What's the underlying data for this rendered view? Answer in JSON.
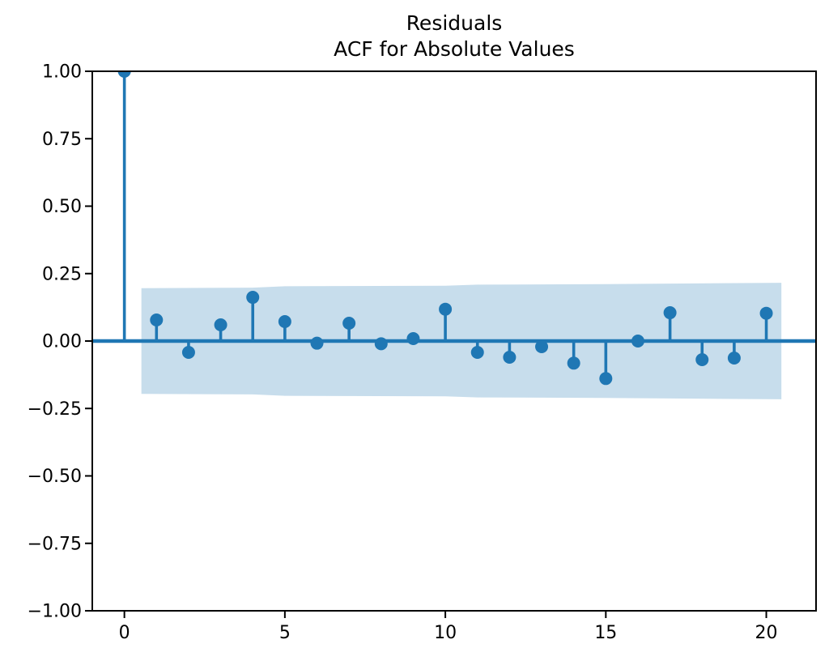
{
  "title": {
    "line1": "Residuals",
    "line2": "ACF for Absolute Values"
  },
  "chart_data": {
    "type": "stem",
    "title": "Residuals\nACF for Absolute Values",
    "xlabel": "",
    "ylabel": "",
    "x": [
      0,
      1,
      2,
      3,
      4,
      5,
      6,
      7,
      8,
      9,
      10,
      11,
      12,
      13,
      14,
      15,
      16,
      17,
      18,
      19,
      20
    ],
    "values": [
      1.0,
      0.078,
      -0.042,
      0.06,
      0.162,
      0.072,
      -0.008,
      0.066,
      -0.01,
      0.009,
      0.118,
      -0.042,
      -0.06,
      -0.021,
      -0.082,
      -0.139,
      0.0,
      0.105,
      -0.069,
      -0.063,
      0.103
    ],
    "xlim": [
      -1.0,
      21.55
    ],
    "ylim": [
      -1.0,
      1.0
    ],
    "xticks": {
      "values": [
        0,
        5,
        10,
        15,
        20
      ],
      "labels": [
        "0",
        "5",
        "10",
        "15",
        "20"
      ]
    },
    "yticks": {
      "values": [
        1.0,
        0.75,
        0.5,
        0.25,
        0.0,
        -0.25,
        -0.5,
        -0.75,
        -1.0
      ],
      "labels": [
        "1.00",
        "0.75",
        "0.50",
        "0.25",
        "0.00",
        "−0.25",
        "−0.50",
        "−0.75",
        "−1.00"
      ]
    },
    "confidence_band": {
      "x": [
        0.53,
        4,
        5,
        10,
        11,
        15,
        17,
        20.47
      ],
      "upper": [
        0.196,
        0.198,
        0.203,
        0.205,
        0.209,
        0.211,
        0.213,
        0.216
      ],
      "lower": [
        -0.196,
        -0.198,
        -0.203,
        -0.205,
        -0.209,
        -0.211,
        -0.213,
        -0.216
      ]
    },
    "grid": false,
    "legend": null,
    "colors": {
      "stem": "#1f77b4",
      "marker": "#1f77b4",
      "zero_line": "#1f77b4",
      "band_fill": "#1f77b4",
      "band_opacity": 0.25,
      "axis": "#000000",
      "tick_text": "#000000",
      "background": "#ffffff"
    }
  }
}
